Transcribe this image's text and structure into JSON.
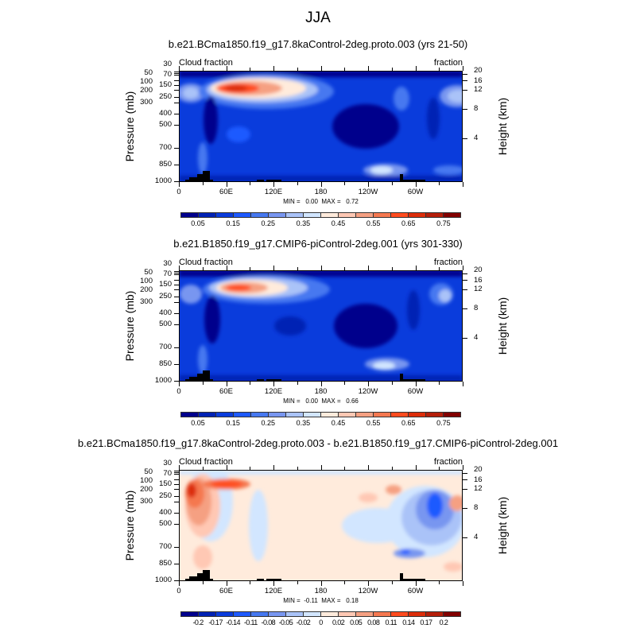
{
  "title": "JJA",
  "chart_data": [
    {
      "type": "heatmap",
      "title": "b.e21.BCma1850.f19_g17.8kaControl-2deg.proto.003 (yrs 21-50)",
      "left_label": "Cloud fraction",
      "right_label": "fraction",
      "ylabel": "Pressure (mb)",
      "ylabel_right": "Height (km)",
      "x_ticks": [
        "0",
        "60E",
        "120E",
        "180",
        "120W",
        "60W"
      ],
      "y_ticks": [
        "30",
        "50",
        "70",
        "100",
        "150",
        "200",
        "250",
        "300",
        "400",
        "500",
        "700",
        "850",
        "1000"
      ],
      "y_right_ticks": [
        "20",
        "16",
        "12",
        "8",
        "4"
      ],
      "stats": "MIN =   0.00  MAX =   0.72",
      "min": 0.0,
      "max": 0.72,
      "levels_labels": [
        "0.05",
        "0.15",
        "0.25",
        "0.35",
        "0.45",
        "0.55",
        "0.65",
        "0.75"
      ],
      "colors": [
        "#00008c",
        "#0022b4",
        "#0a3cdc",
        "#1e5aff",
        "#4678f0",
        "#7896f0",
        "#aac3f8",
        "#d2e6ff",
        "#ffebdc",
        "#ffc8b4",
        "#f5a082",
        "#f57850",
        "#ff4b1e",
        "#dc2d0a",
        "#b41e0a",
        "#820000"
      ]
    },
    {
      "type": "heatmap",
      "title": "b.e21.B1850.f19_g17.CMIP6-piControl-2deg.001 (yrs 301-330)",
      "left_label": "Cloud fraction",
      "right_label": "fraction",
      "ylabel": "Pressure (mb)",
      "ylabel_right": "Height (km)",
      "x_ticks": [
        "0",
        "60E",
        "120E",
        "180",
        "120W",
        "60W"
      ],
      "y_ticks": [
        "30",
        "50",
        "70",
        "100",
        "150",
        "200",
        "250",
        "300",
        "400",
        "500",
        "700",
        "850",
        "1000"
      ],
      "y_right_ticks": [
        "20",
        "16",
        "12",
        "8",
        "4"
      ],
      "stats": "MIN =   0.00  MAX =   0.66",
      "min": 0.0,
      "max": 0.66,
      "levels_labels": [
        "0.05",
        "0.15",
        "0.25",
        "0.35",
        "0.45",
        "0.55",
        "0.65",
        "0.75"
      ],
      "colors": [
        "#00008c",
        "#0022b4",
        "#0a3cdc",
        "#1e5aff",
        "#4678f0",
        "#7896f0",
        "#aac3f8",
        "#d2e6ff",
        "#ffebdc",
        "#ffc8b4",
        "#f5a082",
        "#f57850",
        "#ff4b1e",
        "#dc2d0a",
        "#b41e0a",
        "#820000"
      ]
    },
    {
      "type": "heatmap",
      "title": "b.e21.BCma1850.f19_g17.8kaControl-2deg.proto.003 - b.e21.B1850.f19_g17.CMIP6-piControl-2deg.001",
      "left_label": "Cloud fraction",
      "right_label": "fraction",
      "ylabel": "Pressure (mb)",
      "ylabel_right": "Height (km)",
      "x_ticks": [
        "0",
        "60E",
        "120E",
        "180",
        "120W",
        "60W"
      ],
      "y_ticks": [
        "30",
        "50",
        "70",
        "100",
        "150",
        "200",
        "250",
        "300",
        "400",
        "500",
        "700",
        "850",
        "1000"
      ],
      "y_right_ticks": [
        "20",
        "16",
        "12",
        "8",
        "4"
      ],
      "stats": "MIN =  -0.11  MAX =   0.18",
      "min": -0.11,
      "max": 0.18,
      "levels_labels": [
        "-0.2",
        "-0.17",
        "-0.14",
        "-0.11",
        "-0.08",
        "-0.05",
        "-0.02",
        "0",
        "0.02",
        "0.05",
        "0.08",
        "0.11",
        "0.14",
        "0.17",
        "0.2"
      ],
      "colors": [
        "#00008c",
        "#0022b4",
        "#0a3cdc",
        "#1e5aff",
        "#4678f0",
        "#7896f0",
        "#aac3f8",
        "#d2e6ff",
        "#ffebdc",
        "#ffc8b4",
        "#f5a082",
        "#f57850",
        "#ff4b1e",
        "#dc2d0a",
        "#b41e0a",
        "#820000"
      ]
    }
  ]
}
